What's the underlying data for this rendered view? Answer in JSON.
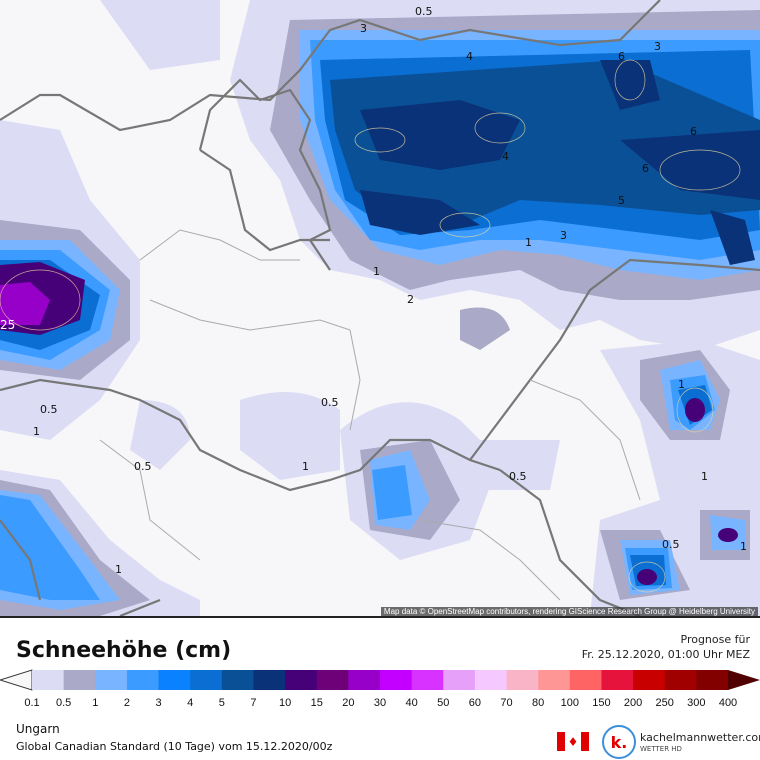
{
  "map": {
    "attribution": "Map data © OpenStreetMap contributors, rendering GIScience Research Group @ Heidelberg University",
    "contour_labels": [
      "0.5",
      "3",
      "4",
      "6",
      "3",
      "6",
      "4",
      "5",
      "6",
      "3",
      "1",
      "1",
      "2",
      "25",
      "0.5",
      "1",
      "0.5",
      "0.5",
      "1",
      "0.5",
      "1",
      "1",
      "1",
      "0.5",
      "1"
    ]
  },
  "header": {
    "title": "Schneehöhe (cm)",
    "forecast_label": "Prognose für",
    "forecast_time": "Fr. 25.12.2020, 01:00 Uhr MEZ"
  },
  "colorbar": {
    "ticks": [
      "0.1",
      "0.5",
      "1",
      "2",
      "3",
      "4",
      "5",
      "7",
      "10",
      "15",
      "20",
      "30",
      "40",
      "50",
      "60",
      "70",
      "80",
      "100",
      "150",
      "200",
      "250",
      "300",
      "400"
    ],
    "colors": [
      "#dcdcf5",
      "#aaaac8",
      "#78b4ff",
      "#3c9bff",
      "#0a82ff",
      "#0a6ed2",
      "#0a5096",
      "#0a3278",
      "#460078",
      "#6e0078",
      "#9600c8",
      "#c300ff",
      "#d732ff",
      "#e6a0fa",
      "#f5c8ff",
      "#fab4c8",
      "#ff9696",
      "#ff6464",
      "#e6143c",
      "#c80000",
      "#a00000",
      "#820000"
    ],
    "under_color": "#f7f7f7",
    "over_color": "#500000"
  },
  "footer": {
    "region": "Ungarn",
    "model": "Global Canadian Standard (10 Tage) vom  15.12.2020/00z",
    "brand": "kachelmannwetter.com",
    "brand_sub": "WETTER HD",
    "logo_letter": "k.",
    "flag_icon": "canada-flag-icon"
  }
}
